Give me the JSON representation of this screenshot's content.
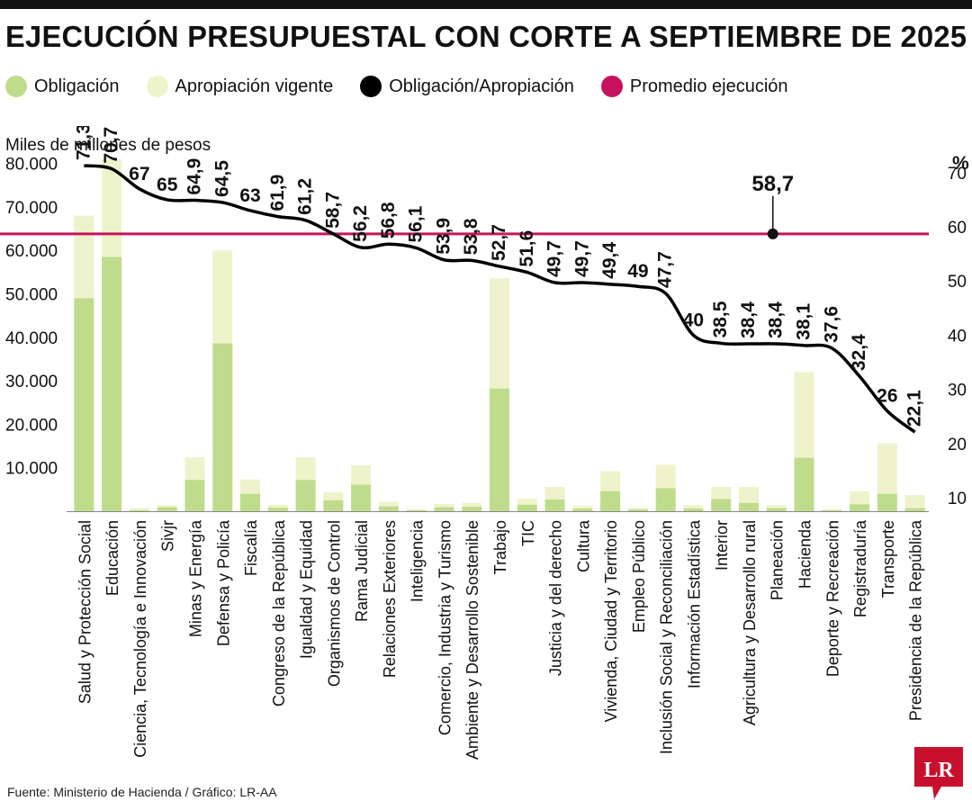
{
  "title": "EJECUCIÓN PRESUPUESTAL CON CORTE A SEPTIEMBRE DE 2025",
  "legend": [
    {
      "label": "Obligación",
      "color": "#bfdc8d"
    },
    {
      "label": "Apropiación vigente",
      "color": "#eef3cc"
    },
    {
      "label": "Obligación/Apropiación",
      "color": "#000000"
    },
    {
      "label": "Promedio ejecución",
      "color": "#c7135f"
    }
  ],
  "source": "Fuente: Ministerio de Hacienda / Gráfico: LR-AA",
  "logo_text": "LR",
  "chart_data": {
    "type": "bar",
    "ylabel_left": "Miles de millones de pesos",
    "ylabel_right": "%",
    "y_left_ticks": [
      "10.000",
      "20.000",
      "30.000",
      "40.000",
      "50.000",
      "60.000",
      "70.000",
      "80.000"
    ],
    "y_left_lim": [
      0,
      82000
    ],
    "y_right_ticks": [
      "10",
      "20",
      "30",
      "40",
      "50",
      "60",
      "70"
    ],
    "y_right_lim": [
      7.5,
      73.3
    ],
    "categories": [
      "Salud y Protección Social",
      "Educación",
      "Ciencia, Tecnología e Innovación",
      "Sivjr",
      "Minas y Energía",
      "Defensa y Policía",
      "Fiscalía",
      "Congreso de la República",
      "Igualdad y Equidad",
      "Organismos de Control",
      "Rama Judicial",
      "Relaciones Exteriores",
      "Inteligencia",
      "Comercio, Industria y Turismo",
      "Ambiente y Desarrollo Sostenible",
      "Trabajo",
      "TIC",
      "Justicia y del derecho",
      "Cultura",
      "Vivienda, Ciudad y Territorio",
      "Empleo Público",
      "Inclusión Social y Reconciliación",
      "Información Estadística",
      "Interior",
      "Agricultura y Desarrollo rural",
      "Planeación",
      "Hacienda",
      "Deporte y Recreación",
      "Registraduría",
      "Transporte",
      "Presidencia de la República"
    ],
    "series": [
      {
        "name": "Obligación",
        "type": "bar",
        "color": "#bfdc8d",
        "values": [
          49000,
          58500,
          200,
          900,
          7200,
          38600,
          4000,
          800,
          7200,
          2500,
          6100,
          1100,
          200,
          900,
          1000,
          28200,
          1500,
          2700,
          600,
          4600,
          400,
          5300,
          600,
          2800,
          1900,
          700,
          12300,
          200,
          1600,
          4000,
          700
        ]
      },
      {
        "name": "Apropiación vigente",
        "type": "bar",
        "color": "#eef3cc",
        "values": [
          68000,
          81000,
          700,
          1400,
          12400,
          60000,
          7300,
          1500,
          12400,
          4400,
          10600,
          2200,
          500,
          1700,
          1900,
          53600,
          2900,
          5600,
          1200,
          9200,
          800,
          10700,
          1400,
          5600,
          5600,
          1400,
          32000,
          500,
          4600,
          15600,
          3700
        ]
      },
      {
        "name": "Obligación/Apropiación",
        "type": "line",
        "color": "#000000",
        "values": [
          71.3,
          70.7,
          67,
          65,
          64.9,
          64.5,
          63,
          61.9,
          61.2,
          58.7,
          56.2,
          56.8,
          56.1,
          53.9,
          53.8,
          52.7,
          51.6,
          49.7,
          49.7,
          49.4,
          49,
          47.7,
          40,
          38.5,
          38.4,
          38.4,
          38.1,
          37.6,
          32.4,
          26,
          22.1
        ],
        "labels": [
          "71,3",
          "70,7",
          "67",
          "65",
          "64,9",
          "64,5",
          "63",
          "61,9",
          "61,2",
          "58,7",
          "56,2",
          "56,8",
          "56,1",
          "53,9",
          "53,8",
          "52,7",
          "51,6",
          "49,7",
          "49,7",
          "49,4",
          "49",
          "47,7",
          "40",
          "38,5",
          "38,4",
          "38,4",
          "38,1",
          "37,6",
          "32,4",
          "26",
          "22,1"
        ]
      },
      {
        "name": "Promedio ejecución",
        "type": "hline",
        "color": "#c7135f",
        "value": 58.7,
        "label": "58,7",
        "marker_category": "Planeación"
      }
    ]
  }
}
